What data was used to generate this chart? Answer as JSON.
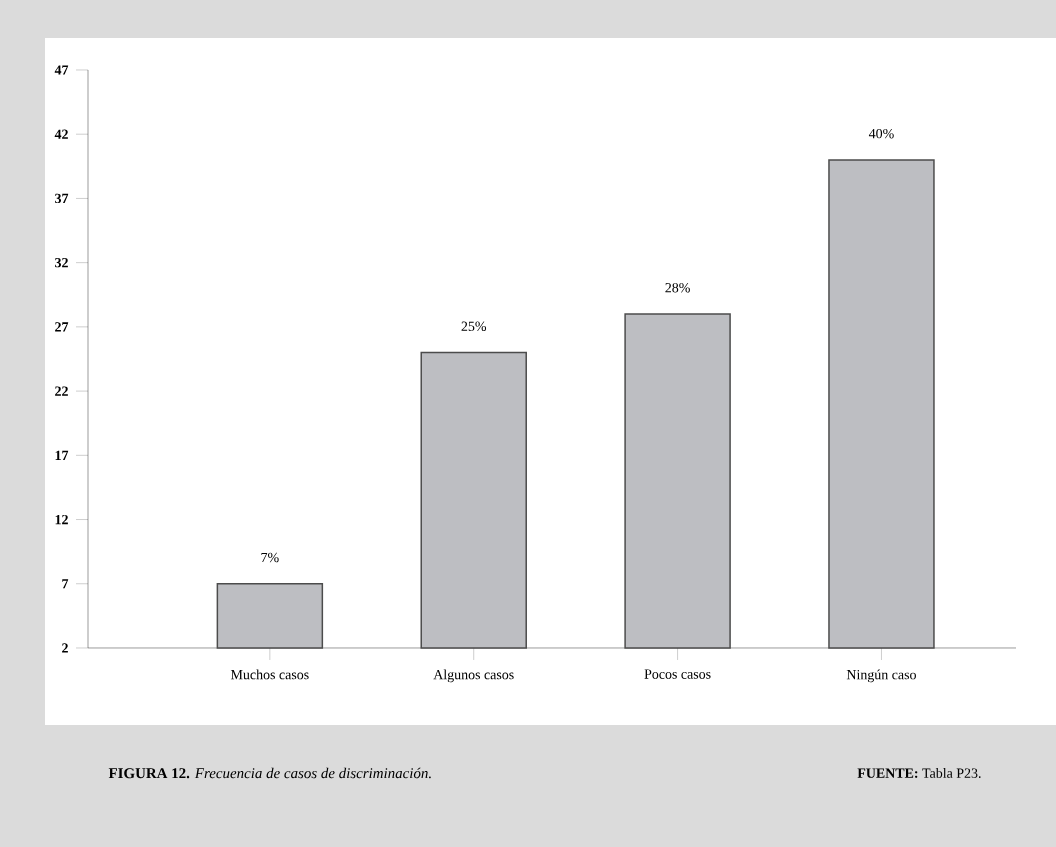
{
  "chart_data": {
    "type": "bar",
    "title": "**FIGURA 12.** *Frecuencia de casos de discriminación.*",
    "categories": [
      "Muchos casos",
      "Algunos casos",
      "Pocos casos",
      "Ningún caso"
    ],
    "values": [
      7,
      25,
      28,
      40
    ],
    "value_labels": [
      "7%",
      "25%",
      "28%",
      "40%"
    ],
    "color": "#bdbec2",
    "ylim": [
      2,
      47
    ],
    "yticks": [
      2,
      7,
      12,
      17,
      22,
      27,
      32,
      37,
      42,
      47
    ],
    "annotations": [
      "**FUENTE:** Tabla P23."
    ]
  }
}
